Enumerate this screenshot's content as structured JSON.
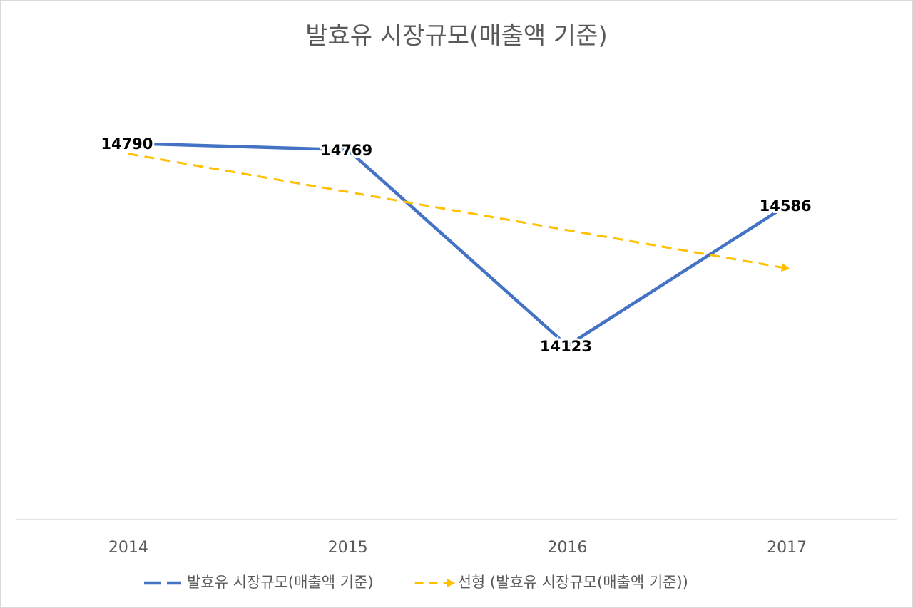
{
  "chart_data": {
    "type": "line",
    "title": "발효유 시장규모(매출액 기준)",
    "categories": [
      "2014",
      "2015",
      "2016",
      "2017"
    ],
    "series": [
      {
        "name": "발효유 시장규모(매출액 기준)",
        "color": "#4472c4",
        "style": "solid",
        "data_labels": true,
        "values": [
          14790,
          14769,
          14123,
          14586
        ]
      },
      {
        "name": "선형 (발효유 시장규모(매출액 기준))",
        "color": "#ffc000",
        "style": "dashed",
        "data_labels": false,
        "values": [
          14755.7,
          14629.9,
          14504.1,
          14378.3
        ]
      }
    ],
    "ylim": [
      13550,
      14950
    ],
    "grid": false,
    "legend": "bottom"
  }
}
